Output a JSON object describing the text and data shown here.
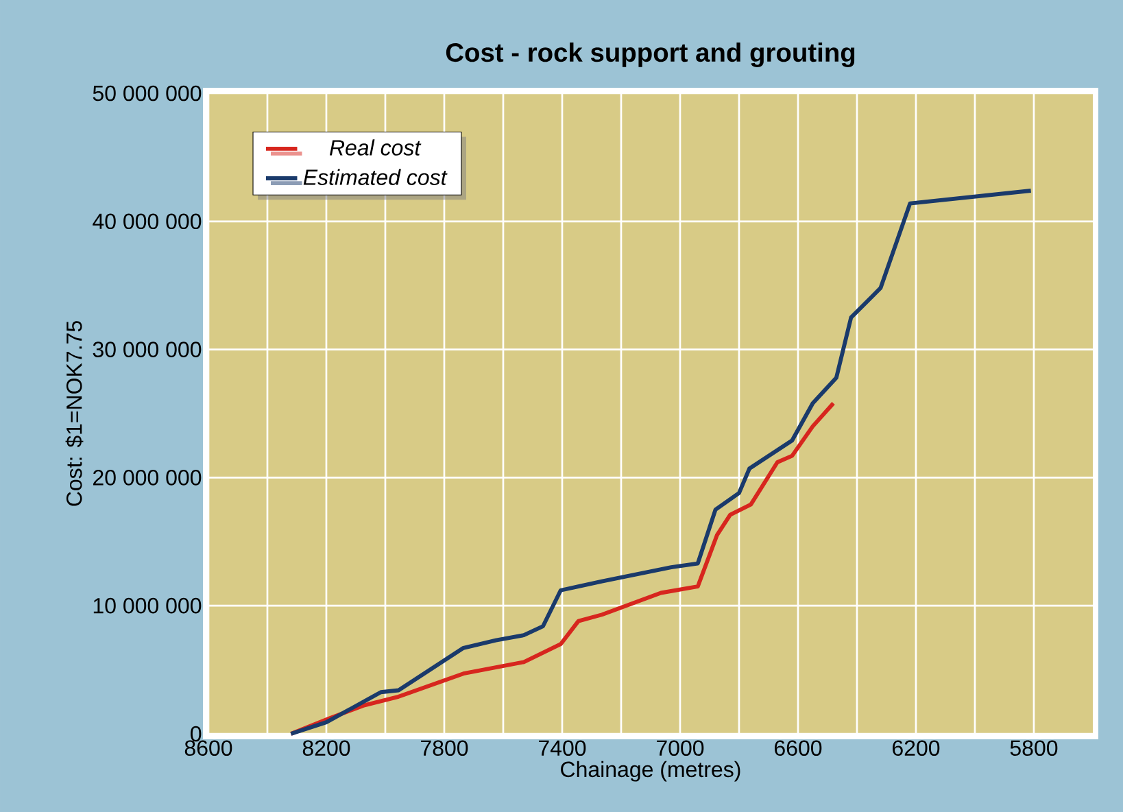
{
  "chart_data": {
    "type": "line",
    "title": "Cost - rock support and grouting",
    "xlabel": "Chainage (metres)",
    "ylabel": "Cost: $1=NOK7.75",
    "xlim": [
      8600,
      5600
    ],
    "xticks": [
      8600,
      8200,
      7800,
      7400,
      7000,
      6600,
      6200,
      5800
    ],
    "ylim": [
      0,
      50000000
    ],
    "yticks": [
      {
        "value": 0,
        "label": "0"
      },
      {
        "value": 10000000,
        "label": "10 000 000"
      },
      {
        "value": 20000000,
        "label": "20 000 000"
      },
      {
        "value": 30000000,
        "label": "30 000 000"
      },
      {
        "value": 40000000,
        "label": "40 000 000"
      },
      {
        "value": 50000000,
        "label": "50 000 000"
      }
    ],
    "grid": true,
    "legend": "top left",
    "marker": "none",
    "line_style": "solid",
    "series": [
      {
        "name": "Real cost",
        "color": "#d7261e",
        "x": [
          8320,
          8190,
          8075,
          7955,
          7735,
          7530,
          7405,
          7345,
          7265,
          7065,
          6940,
          6875,
          6830,
          6760,
          6670,
          6620,
          6550,
          6480
        ],
        "values": [
          0,
          1200000,
          2200000,
          2900000,
          4700000,
          5600000,
          7000000,
          8800000,
          9300000,
          11000000,
          11500000,
          15500000,
          17100000,
          17900000,
          21200000,
          21700000,
          24000000,
          25800000
        ]
      },
      {
        "name": "Estimated cost",
        "color": "#1a3a6b",
        "x": [
          8320,
          8200,
          8015,
          7955,
          7735,
          7625,
          7530,
          7465,
          7405,
          7345,
          7265,
          7030,
          6940,
          6880,
          6800,
          6765,
          6620,
          6550,
          6470,
          6420,
          6320,
          6220,
          5810
        ],
        "values": [
          0,
          900000,
          3250000,
          3400000,
          6700000,
          7300000,
          7700000,
          8400000,
          11200000,
          11500000,
          11900000,
          13000000,
          13300000,
          17500000,
          18800000,
          20700000,
          22900000,
          25800000,
          27800000,
          32500000,
          34800000,
          41400000,
          42400000
        ]
      }
    ]
  }
}
